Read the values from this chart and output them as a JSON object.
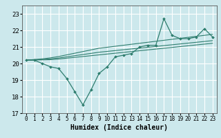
{
  "xlabel": "Humidex (Indice chaleur)",
  "background_color": "#cce8ec",
  "grid_color": "#ffffff",
  "line_color": "#2e7d6e",
  "xlim": [
    -0.5,
    23.5
  ],
  "ylim": [
    17,
    23.5
  ],
  "xticks": [
    0,
    1,
    2,
    3,
    4,
    5,
    6,
    7,
    8,
    9,
    10,
    11,
    12,
    13,
    14,
    15,
    16,
    17,
    18,
    19,
    20,
    21,
    22,
    23
  ],
  "yticks": [
    17,
    18,
    19,
    20,
    21,
    22,
    23
  ],
  "series_main": [
    20.2,
    20.2,
    20.0,
    19.8,
    19.7,
    19.1,
    18.3,
    17.5,
    18.4,
    19.4,
    19.8,
    20.4,
    20.5,
    20.6,
    21.0,
    21.1,
    21.1,
    22.7,
    21.7,
    21.5,
    21.5,
    21.6,
    22.1,
    21.6
  ],
  "series_trend1": [
    20.2,
    20.21,
    20.22,
    20.23,
    20.27,
    20.32,
    20.37,
    20.42,
    20.47,
    20.52,
    20.57,
    20.62,
    20.67,
    20.72,
    20.77,
    20.82,
    20.87,
    20.92,
    20.97,
    21.02,
    21.07,
    21.12,
    21.17,
    21.22
  ],
  "series_trend2": [
    20.2,
    20.22,
    20.24,
    20.28,
    20.33,
    20.4,
    20.47,
    20.54,
    20.61,
    20.68,
    20.73,
    20.78,
    20.83,
    20.88,
    20.93,
    20.98,
    21.03,
    21.08,
    21.13,
    21.18,
    21.23,
    21.28,
    21.33,
    21.38
  ],
  "series_trend3": [
    20.2,
    20.24,
    20.28,
    20.34,
    20.42,
    20.52,
    20.62,
    20.72,
    20.82,
    20.92,
    20.98,
    21.04,
    21.1,
    21.16,
    21.22,
    21.28,
    21.34,
    21.4,
    21.46,
    21.52,
    21.58,
    21.64,
    21.7,
    21.76
  ]
}
